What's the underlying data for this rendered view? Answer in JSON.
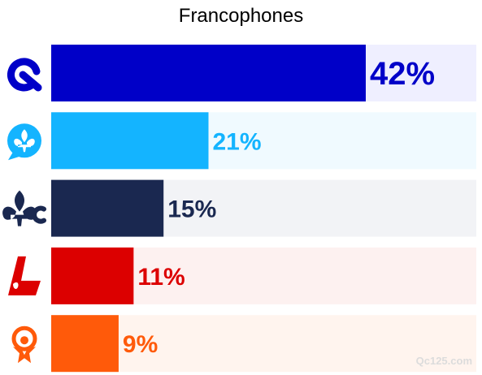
{
  "chart_data": {
    "type": "bar",
    "orientation": "horizontal",
    "title": "Francophones",
    "xlabel": "",
    "ylabel": "",
    "xlim": [
      0,
      50
    ],
    "grid": false,
    "legend": "none",
    "categories": [
      "CAQ",
      "PQ",
      "PLQ",
      "QS",
      "PCQ"
    ],
    "values": [
      42,
      21,
      15,
      11,
      9
    ],
    "data_labels": [
      "42%",
      "21%",
      "15%",
      "11%",
      "9%"
    ],
    "bar_colors": [
      "#0000c8",
      "#14b4ff",
      "#1a2850",
      "#dc0000",
      "#ff5a0a"
    ],
    "track_colors": [
      "#efefff",
      "#f0faff",
      "#f2f3f6",
      "#fdf1f0",
      "#fff4ee"
    ],
    "icons": [
      "caq-logo-icon",
      "pq-logo-icon",
      "plq-logo-icon",
      "qs-logo-icon",
      "pcq-logo-icon"
    ]
  },
  "watermark": "Qc125.com"
}
